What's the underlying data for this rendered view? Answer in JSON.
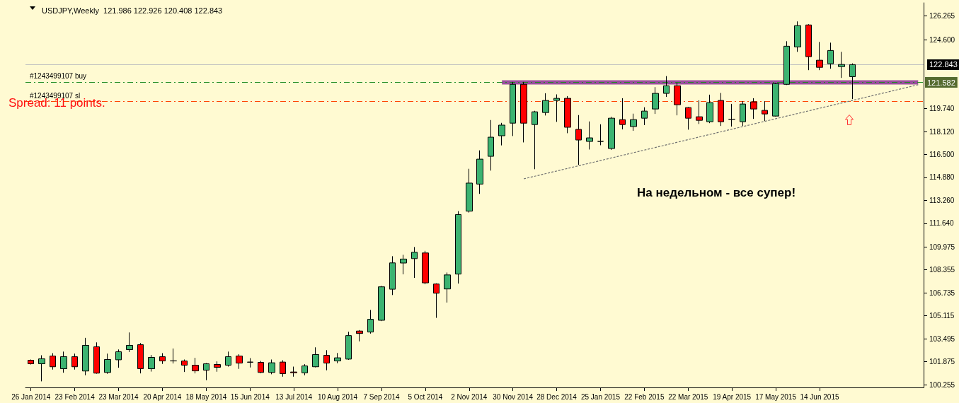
{
  "chart_data": {
    "type": "candlestick",
    "title": "USDJPY,Weekly  121.986 122.926 120.408 122.843",
    "categories": [
      "26 Jan 2014",
      null,
      null,
      null,
      "23 Feb 2014",
      null,
      null,
      null,
      "23 Mar 2014",
      null,
      null,
      null,
      "20 Apr 2014",
      null,
      null,
      null,
      "18 May 2014",
      null,
      null,
      null,
      "15 Jun 2014",
      null,
      null,
      null,
      "13 Jul 2014",
      null,
      null,
      null,
      "10 Aug 2014",
      null,
      null,
      null,
      "7 Sep 2014",
      null,
      null,
      null,
      "5 Oct 2014",
      null,
      null,
      null,
      "2 Nov 2014",
      null,
      null,
      null,
      "30 Nov 2014",
      null,
      null,
      null,
      "28 Dec 2014",
      null,
      null,
      null,
      "25 Jan 2015",
      null,
      null,
      null,
      "22 Feb 2015",
      null,
      null,
      null,
      "22 Mar 2015",
      null,
      null,
      null,
      "19 Apr 2015",
      null,
      null,
      null,
      "17 May 2015",
      null,
      null,
      null,
      "14 Jun 2015",
      null,
      null,
      null,
      null,
      null,
      null,
      null,
      null,
      null
    ],
    "ohlc": [
      [
        101.98,
        102.03,
        101.68,
        101.73
      ],
      [
        101.73,
        102.33,
        100.49,
        102.08
      ],
      [
        102.28,
        102.48,
        101.32,
        101.52
      ],
      [
        101.38,
        102.59,
        101.1,
        102.23
      ],
      [
        102.23,
        102.45,
        101.32,
        101.52
      ],
      [
        101.22,
        103.56,
        100.92,
        103.03
      ],
      [
        102.93,
        103.24,
        101.03,
        101.07
      ],
      [
        101.12,
        102.45,
        101.02,
        102.03
      ],
      [
        102.01,
        102.74,
        101.45,
        102.58
      ],
      [
        102.73,
        103.94,
        102.56,
        103.03
      ],
      [
        103.08,
        103.19,
        101.05,
        101.38
      ],
      [
        101.38,
        102.35,
        101.18,
        102.18
      ],
      [
        102.23,
        102.48,
        101.72,
        101.93
      ],
      [
        101.93,
        102.81,
        101.75,
        101.94
      ],
      [
        101.93,
        102.03,
        101.15,
        101.63
      ],
      [
        101.63,
        102.15,
        101.05,
        101.23
      ],
      [
        101.28,
        101.78,
        100.57,
        101.73
      ],
      [
        101.68,
        101.9,
        101.17,
        101.48
      ],
      [
        101.63,
        102.59,
        101.53,
        102.23
      ],
      [
        102.28,
        102.4,
        101.37,
        101.78
      ],
      [
        101.84,
        102.13,
        101.47,
        101.85
      ],
      [
        101.83,
        101.93,
        101.07,
        101.12
      ],
      [
        101.12,
        102.03,
        100.99,
        101.8
      ],
      [
        101.85,
        101.98,
        100.82,
        101.03
      ],
      [
        101.15,
        101.53,
        100.82,
        101.1
      ],
      [
        101.09,
        101.7,
        100.92,
        101.58
      ],
      [
        101.52,
        102.89,
        101.48,
        102.38
      ],
      [
        102.33,
        102.69,
        101.27,
        101.78
      ],
      [
        101.93,
        102.49,
        101.77,
        102.15
      ],
      [
        102.06,
        103.99,
        102.01,
        103.72
      ],
      [
        104.04,
        104.11,
        103.31,
        103.87
      ],
      [
        103.97,
        105.53,
        103.86,
        104.87
      ],
      [
        104.8,
        107.23,
        104.74,
        107.16
      ],
      [
        106.99,
        109.32,
        106.58,
        108.85
      ],
      [
        108.84,
        109.42,
        108.04,
        109.12
      ],
      [
        109.15,
        109.97,
        107.79,
        109.6
      ],
      [
        109.55,
        109.7,
        107.34,
        107.44
      ],
      [
        107.36,
        107.41,
        104.97,
        106.71
      ],
      [
        107.01,
        108.17,
        106.05,
        108
      ],
      [
        108.06,
        112.5,
        107.39,
        112.26
      ],
      [
        112.5,
        115.49,
        112.4,
        114.48
      ],
      [
        114.41,
        116.79,
        113.72,
        116.17
      ],
      [
        116.37,
        118.93,
        115.36,
        117.72
      ],
      [
        117.82,
        118.73,
        117.14,
        118.57
      ],
      [
        118.71,
        121.62,
        117.8,
        121.45
      ],
      [
        121.45,
        121.62,
        117.35,
        118.71
      ],
      [
        118.61,
        119.58,
        115.46,
        119.51
      ],
      [
        119.46,
        120.82,
        119.25,
        120.31
      ],
      [
        120.31,
        120.74,
        118.8,
        120.46
      ],
      [
        120.46,
        120.62,
        118,
        118.42
      ],
      [
        118.27,
        119.28,
        115.76,
        117.52
      ],
      [
        117.42,
        118.83,
        116.85,
        117.67
      ],
      [
        117.42,
        118.63,
        117.15,
        117.43
      ],
      [
        116.92,
        119.16,
        116.82,
        119.06
      ],
      [
        118.96,
        120.47,
        118.27,
        118.61
      ],
      [
        118.47,
        119.38,
        118.17,
        118.96
      ],
      [
        119.06,
        119.83,
        118.57,
        119.56
      ],
      [
        119.71,
        121.25,
        119.36,
        120.81
      ],
      [
        120.81,
        122.03,
        120.56,
        121.35
      ],
      [
        121.35,
        121.57,
        119.26,
        120.01
      ],
      [
        119.81,
        119.85,
        118.25,
        119.06
      ],
      [
        119.16,
        120.32,
        118.65,
        118.91
      ],
      [
        118.81,
        120.72,
        118.71,
        120.16
      ],
      [
        120.31,
        120.84,
        118.51,
        118.81
      ],
      [
        118.98,
        120.07,
        118.47,
        118.99
      ],
      [
        118.81,
        120.26,
        118.51,
        120.06
      ],
      [
        120.21,
        120.47,
        119.01,
        119.71
      ],
      [
        119.61,
        120.26,
        118.86,
        119.36
      ],
      [
        119.21,
        121.55,
        119.18,
        121.5
      ],
      [
        121.45,
        124.49,
        121.4,
        124.14
      ],
      [
        124.09,
        125.89,
        123.74,
        125.59
      ],
      [
        125.64,
        125.69,
        122.45,
        123.4
      ],
      [
        123.15,
        124.44,
        122.45,
        122.65
      ],
      [
        122.9,
        124.39,
        122.55,
        123.84
      ],
      [
        122.7,
        123.74,
        121.9,
        122.85
      ],
      [
        121.986,
        122.926,
        120.408,
        122.843
      ],
      null,
      null,
      null,
      null,
      null,
      null
    ],
    "colors": [
      "#ff0000",
      "#3cb371",
      "#ff0000",
      "#3cb371",
      "#ff0000",
      "#3cb371",
      "#ff0000",
      "#3cb371",
      "#3cb371",
      "#3cb371",
      "#ff0000",
      "#3cb371",
      "#ff0000",
      "#3cb371",
      "#ff0000",
      "#ff0000",
      "#3cb371",
      "#ff0000",
      "#3cb371",
      "#ff0000",
      "#3cb371",
      "#ff0000",
      "#3cb371",
      "#ff0000",
      "#ff0000",
      "#3cb371",
      "#3cb371",
      "#ff0000",
      "#3cb371",
      "#3cb371",
      "#ff0000",
      "#3cb371",
      "#3cb371",
      "#3cb371",
      "#3cb371",
      "#3cb371",
      "#ff0000",
      "#ff0000",
      "#3cb371",
      "#3cb371",
      "#3cb371",
      "#3cb371",
      "#3cb371",
      "#3cb371",
      "#3cb371",
      "#ff0000",
      "#3cb371",
      "#3cb371",
      "#3cb371",
      "#ff0000",
      "#ff0000",
      "#3cb371",
      "#3cb371",
      "#3cb371",
      "#ff0000",
      "#3cb371",
      "#3cb371",
      "#3cb371",
      "#3cb371",
      "#ff0000",
      "#ff0000",
      "#ff0000",
      "#3cb371",
      "#ff0000",
      "#3cb371",
      "#3cb371",
      "#ff0000",
      "#ff0000",
      "#3cb371",
      "#3cb371",
      "#3cb371",
      "#ff0000",
      "#ff0000",
      "#3cb371",
      "#3cb371",
      "#3cb371",
      null,
      null,
      null,
      null,
      null,
      null
    ],
    "series": [
      {
        "type": "line",
        "color": "#9b4f9f",
        "line_style": "solid",
        "values": [
          null,
          null,
          null,
          null,
          null,
          null,
          null,
          null,
          null,
          null,
          null,
          null,
          null,
          null,
          null,
          null,
          null,
          null,
          null,
          null,
          null,
          null,
          null,
          null,
          null,
          null,
          null,
          null,
          null,
          null,
          null,
          null,
          null,
          null,
          null,
          null,
          null,
          null,
          null,
          null,
          null,
          null,
          null,
          121.582,
          null,
          null,
          null,
          null,
          null,
          null,
          null,
          null,
          null,
          null,
          null,
          null,
          null,
          null,
          null,
          null,
          null,
          null,
          null,
          null,
          null,
          null,
          null,
          null,
          null,
          null,
          null,
          null,
          null,
          null,
          null,
          null,
          null,
          null,
          null,
          null,
          null,
          121.582
        ]
      },
      {
        "type": "line",
        "color": "#707070",
        "line_style": "dotted",
        "values": [
          null,
          null,
          null,
          null,
          null,
          null,
          null,
          null,
          null,
          null,
          null,
          null,
          null,
          null,
          null,
          null,
          null,
          null,
          null,
          null,
          null,
          null,
          null,
          null,
          null,
          null,
          null,
          null,
          null,
          null,
          null,
          null,
          null,
          null,
          null,
          null,
          null,
          null,
          null,
          null,
          null,
          null,
          null,
          null,
          null,
          114.78,
          null,
          null,
          null,
          null,
          null,
          null,
          null,
          null,
          null,
          null,
          null,
          null,
          null,
          null,
          null,
          null,
          null,
          null,
          null,
          null,
          null,
          null,
          null,
          null,
          null,
          null,
          null,
          null,
          null,
          null,
          null,
          null,
          null,
          null,
          null,
          121.42
        ]
      }
    ],
    "ylim": [
      100.06,
      127.2
    ],
    "yticks": [
      100.255,
      101.875,
      103.495,
      105.115,
      106.735,
      108.355,
      109.975,
      {
        "value": 111.64,
        "label": "111.640"
      },
      {
        "value": 113.26,
        "label": "113.260"
      },
      {
        "value": 114.88,
        "label": "114.880"
      },
      {
        "value": 116.5,
        "label": "116.500"
      },
      {
        "value": 118.12,
        "label": "118.120"
      },
      {
        "value": 119.74,
        "label": "119.740"
      },
      {
        "value": 124.6,
        "label": "124.600"
      },
      126.265
    ],
    "ref_lines": [
      {
        "axis": "y",
        "value": 122.843,
        "label": "122.843",
        "color": "#c0c0c0",
        "line_style": "solid"
      },
      {
        "axis": "y",
        "value": 121.62,
        "label": "#1243499107 buy",
        "color": "#228b22",
        "line_style": "dashed"
      },
      {
        "axis": "y",
        "value": 120.26,
        "label": "#1243499107 sl",
        "color": "#ff4500",
        "line_style": "dashed"
      }
    ],
    "annotations": [
      "Spread: 11 points.",
      "На недельном - все супер!",
      "121.582"
    ]
  }
}
